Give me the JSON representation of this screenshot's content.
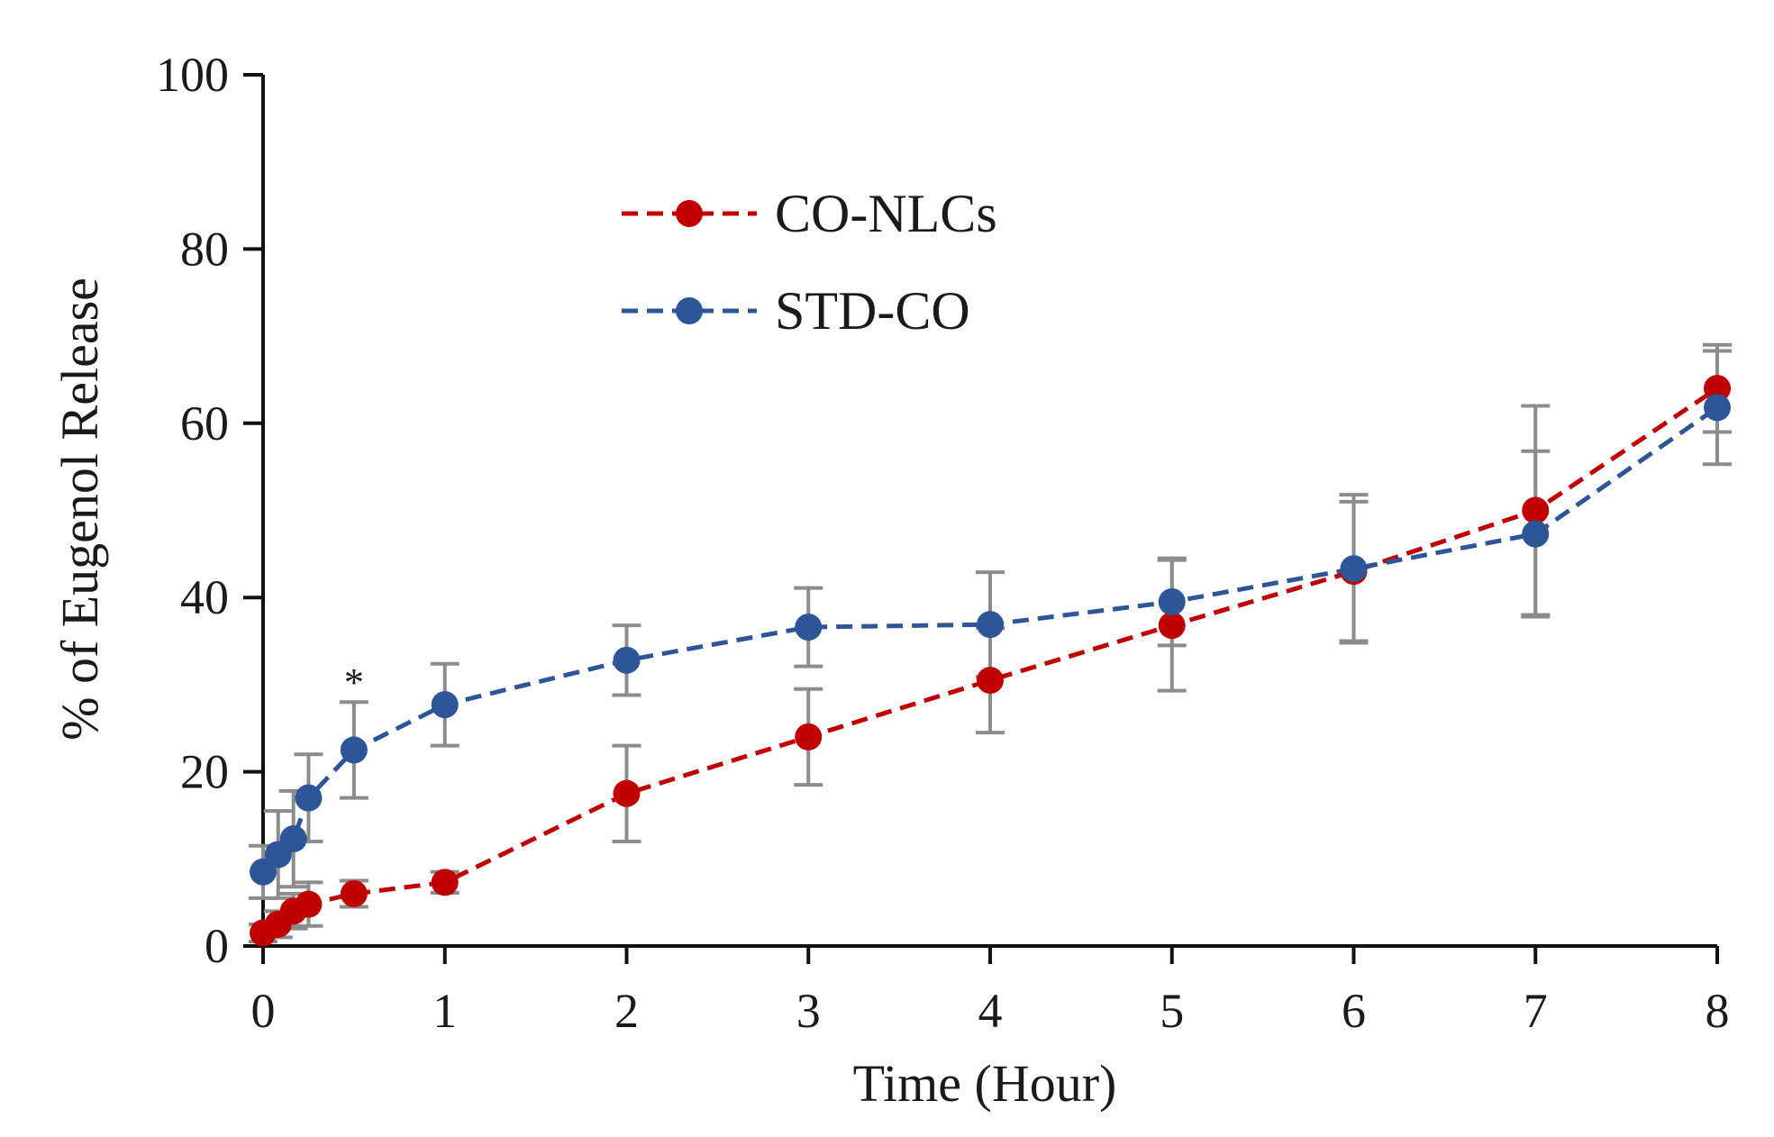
{
  "chart_data": {
    "type": "line",
    "title": "",
    "xlabel": "Time (Hour)",
    "ylabel": "% of Eugenol Release",
    "xlim": [
      0,
      8
    ],
    "ylim": [
      0,
      100
    ],
    "xticks": [
      0,
      1,
      2,
      3,
      4,
      5,
      6,
      7,
      8
    ],
    "yticks": [
      0,
      20,
      40,
      60,
      80,
      100
    ],
    "grid": false,
    "legend_position": "upper-left",
    "annotations": [
      {
        "text": "*",
        "x": 0.5,
        "y": 30
      }
    ],
    "series": [
      {
        "name": "CO-NLCs",
        "color": "#c00000",
        "line_style": "dashed",
        "x": [
          0.0,
          0.083,
          0.167,
          0.25,
          0.5,
          1,
          2,
          3,
          4,
          5,
          6,
          7,
          8
        ],
        "y": [
          1.5,
          2.5,
          4.0,
          4.8,
          6.0,
          7.3,
          17.5,
          24.0,
          30.5,
          36.8,
          43.0,
          50.0,
          64.0
        ],
        "error": [
          1.0,
          1.5,
          2.0,
          2.5,
          1.5,
          1.2,
          5.5,
          5.5,
          6.0,
          7.5,
          8.0,
          12.0,
          5.0
        ]
      },
      {
        "name": "STD-CO",
        "color": "#2e5597",
        "line_style": "dashed",
        "x": [
          0.0,
          0.083,
          0.167,
          0.25,
          0.5,
          1,
          2,
          3,
          4,
          5,
          6,
          7,
          8
        ],
        "y": [
          8.5,
          10.5,
          12.3,
          17.0,
          22.5,
          27.7,
          32.8,
          36.6,
          36.9,
          39.5,
          43.3,
          47.3,
          61.8
        ],
        "error": [
          3.0,
          5.0,
          5.5,
          5.0,
          5.5,
          4.7,
          4.0,
          4.5,
          6.0,
          5.0,
          8.5,
          9.5,
          6.5
        ]
      }
    ],
    "error_bar_color": "#8c8c8c"
  }
}
